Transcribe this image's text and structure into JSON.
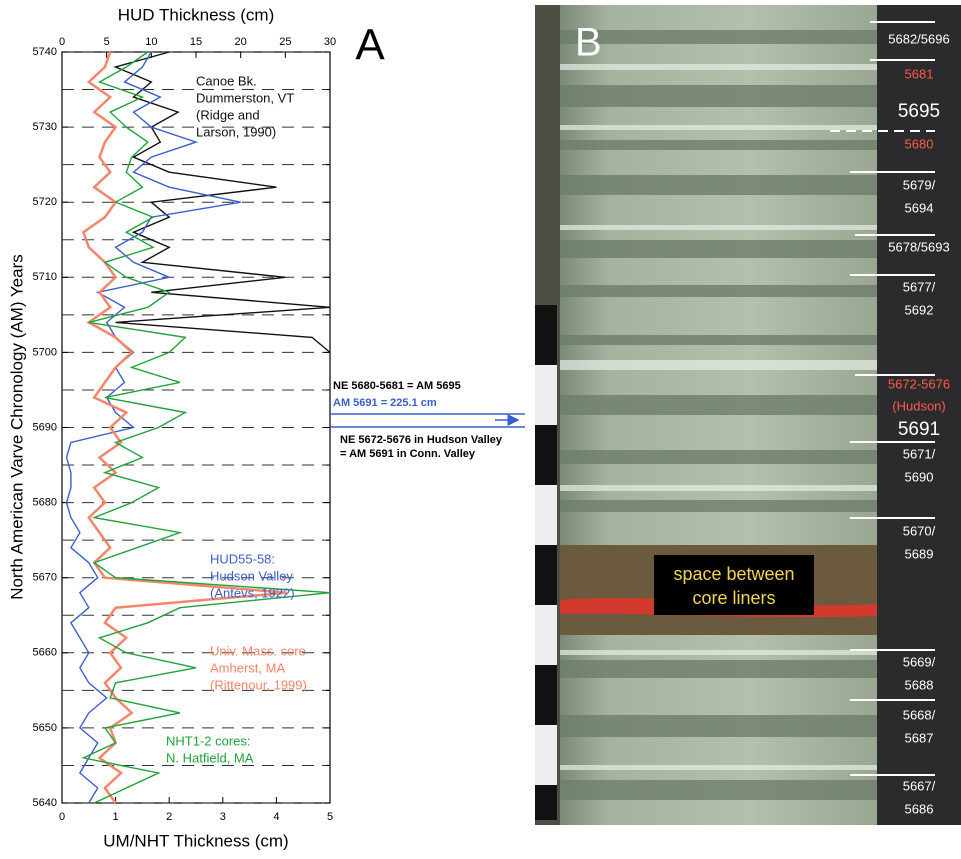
{
  "chart_data": {
    "type": "line",
    "title_top": "HUD Thickness (cm)",
    "xlabel": "UM/NHT Thickness (cm)",
    "ylabel": "North American Varve Chronology (AM) Years",
    "panel": "A",
    "ylim": [
      5640,
      5740
    ],
    "yticks": [
      5640,
      5650,
      5660,
      5670,
      5680,
      5690,
      5700,
      5710,
      5720,
      5730,
      5740
    ],
    "yminor": [
      5645,
      5655,
      5665,
      5675,
      5685,
      5695,
      5705,
      5715,
      5725,
      5735
    ],
    "grid": true,
    "xlim": [
      0,
      5
    ],
    "xticks": [
      0,
      1,
      2,
      3,
      4,
      5
    ],
    "x2lim": [
      0,
      30
    ],
    "x2ticks": [
      0,
      5,
      10,
      15,
      20,
      25,
      30
    ],
    "years": [
      5640,
      5642,
      5644,
      5646,
      5648,
      5650,
      5652,
      5654,
      5656,
      5658,
      5660,
      5662,
      5664,
      5666,
      5668,
      5670,
      5672,
      5674,
      5676,
      5678,
      5680,
      5682,
      5684,
      5686,
      5688,
      5690,
      5692,
      5694,
      5696,
      5698,
      5700,
      5702,
      5704,
      5706,
      5708,
      5710,
      5712,
      5714,
      5716,
      5718,
      5720,
      5722,
      5724,
      5726,
      5728,
      5730,
      5732,
      5734,
      5736,
      5738,
      5740
    ],
    "series": [
      {
        "name": "Canoe Bk.",
        "note": [
          "Dummerston, VT",
          "(Ridge and",
          "Larson, 1990)"
        ],
        "color": "#111111",
        "axis": "x2",
        "values": [
          null,
          null,
          null,
          null,
          null,
          null,
          null,
          null,
          null,
          null,
          null,
          null,
          null,
          null,
          null,
          null,
          null,
          null,
          null,
          null,
          null,
          null,
          null,
          null,
          null,
          null,
          null,
          null,
          null,
          null,
          30,
          28,
          6,
          30,
          10,
          25,
          9,
          12,
          8,
          12,
          10,
          24,
          12,
          8,
          11,
          10,
          13,
          8,
          10,
          6,
          12
        ]
      },
      {
        "name": "HUD55-58:",
        "note": [
          "Hudson Valley",
          "(Antevs, 1922)"
        ],
        "color": "#3a5fcd",
        "axis": "x2",
        "values": [
          3,
          4,
          2,
          3,
          4,
          2,
          3,
          5,
          3,
          2,
          3,
          2,
          1,
          3,
          2,
          4,
          3,
          1,
          2,
          1,
          0.5,
          1,
          1,
          0.5,
          1,
          8,
          6,
          5,
          7,
          6,
          8,
          6,
          5,
          7,
          4,
          12,
          8,
          6,
          9,
          10,
          20,
          12,
          8,
          10,
          15,
          10,
          8,
          11,
          7,
          9,
          10
        ]
      },
      {
        "name": "Univ. Mass. core",
        "note": [
          "Amherst, MA",
          "(Rittenour, 1999)"
        ],
        "color": "#f4866a",
        "axis": "x",
        "values": [
          1.0,
          0.8,
          1.1,
          0.7,
          1.0,
          0.9,
          1.3,
          1.0,
          0.8,
          1.1,
          0.9,
          1.2,
          0.8,
          1.0,
          4.2,
          0.8,
          0.6,
          0.9,
          0.7,
          0.5,
          0.8,
          0.6,
          1.0,
          0.7,
          1.1,
          0.9,
          1.2,
          0.6,
          0.8,
          1.0,
          1.3,
          1.0,
          0.5,
          0.9,
          0.7,
          1.0,
          0.8,
          0.5,
          0.4,
          0.8,
          1.0,
          0.6,
          0.9,
          0.7,
          0.8,
          1.0,
          0.6,
          0.9,
          0.5,
          0.8,
          0.9
        ]
      },
      {
        "name": "NHT1-2 cores:",
        "note": [
          "N. Hatfield, MA"
        ],
        "color": "#1fa33a",
        "axis": "x",
        "values": [
          0.6,
          1.2,
          1.8,
          0.4,
          1.0,
          0.8,
          2.2,
          0.9,
          1.0,
          2.5,
          1.2,
          0.7,
          1.6,
          2.2,
          5.0,
          1.0,
          0.6,
          1.4,
          2.2,
          0.6,
          1.3,
          1.8,
          0.8,
          1.5,
          1.0,
          1.8,
          2.3,
          0.8,
          2.2,
          1.3,
          2.0,
          2.3,
          0.5,
          1.6,
          2.0,
          1.2,
          0.8,
          1.7,
          1.2,
          1.7,
          1.0,
          1.5,
          1.2,
          1.3,
          1.6,
          1.2,
          0.9,
          1.5,
          0.7,
          1.2,
          1.6
        ]
      }
    ],
    "annotations": [
      "NE 5680-5681 = AM 5695",
      "AM 5691 = 225.1 cm",
      "NE 5672-5676 in Hudson Valley",
      "= AM 5691 in Conn. Valley"
    ]
  },
  "photo": {
    "panel": "B",
    "labels": [
      {
        "lines": [
          "5682/5696"
        ],
        "color": "#ffffff"
      },
      {
        "lines": [
          "5681"
        ],
        "color": "#ff5a4a"
      },
      {
        "lines": [
          "5695"
        ],
        "color": "#ffffff"
      },
      {
        "lines": [
          "5680"
        ],
        "color": "#ff5a4a"
      },
      {
        "lines": [
          "5679/",
          "5694"
        ],
        "color": "#ffffff"
      },
      {
        "lines": [
          "5678/5693"
        ],
        "color": "#ffffff"
      },
      {
        "lines": [
          "5677/",
          "5692"
        ],
        "color": "#ffffff"
      },
      {
        "lines": [
          "5672-5676",
          "(Hudson)"
        ],
        "color": "#ff5a4a"
      },
      {
        "lines": [
          "5691"
        ],
        "color": "#ffffff"
      },
      {
        "lines": [
          "5671/",
          "5690"
        ],
        "color": "#ffffff"
      },
      {
        "lines": [
          "5670/",
          "5689"
        ],
        "color": "#ffffff"
      },
      {
        "lines": [
          "5669/",
          "5688"
        ],
        "color": "#ffffff"
      },
      {
        "lines": [
          "5668/",
          "5687"
        ],
        "color": "#ffffff"
      },
      {
        "lines": [
          "5667/",
          "5686"
        ],
        "color": "#ffffff"
      }
    ],
    "caption": [
      "space between",
      "core liners"
    ]
  }
}
